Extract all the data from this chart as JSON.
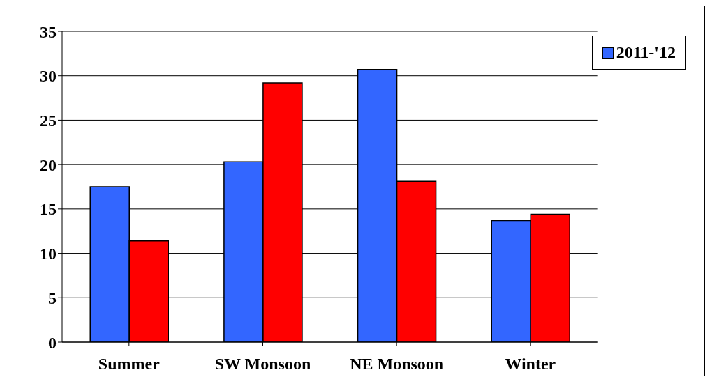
{
  "chart_data": {
    "type": "bar",
    "categories": [
      "Summer",
      "SW Monsoon",
      "NE Monsoon",
      "Winter"
    ],
    "series": [
      {
        "name": "2011-'12",
        "color": "#3366ff",
        "values": [
          17.5,
          20.3,
          30.7,
          13.7
        ]
      },
      {
        "color": "#ff0000",
        "values": [
          11.4,
          29.2,
          18.1,
          14.4
        ]
      }
    ],
    "ylim": [
      0,
      35
    ],
    "yticks": [
      0,
      5,
      10,
      15,
      20,
      25,
      30,
      35
    ],
    "grid": "y",
    "legend": "top right"
  }
}
